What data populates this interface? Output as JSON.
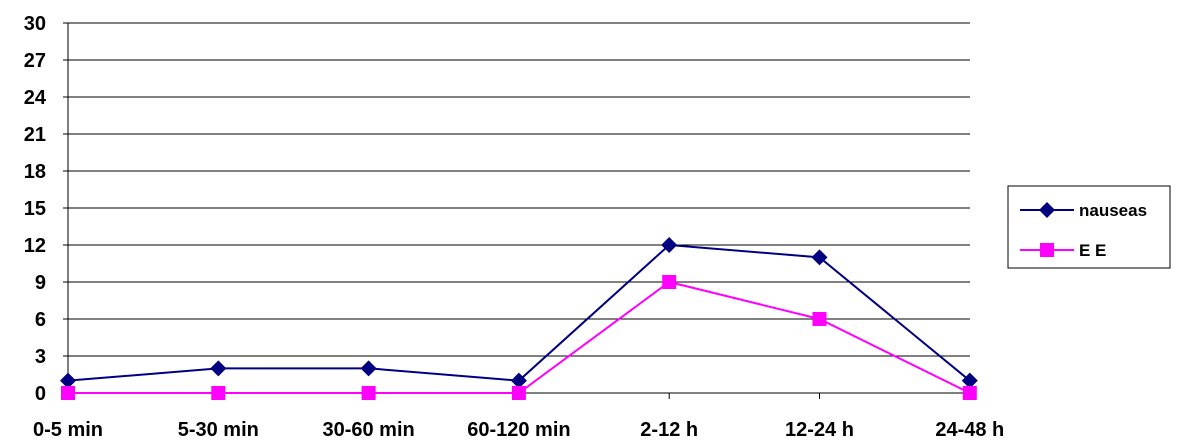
{
  "chart_data": {
    "type": "line",
    "title": "",
    "xlabel": "",
    "ylabel": "",
    "categories": [
      "0-5 min",
      "5-30 min",
      "30-60 min",
      "60-120 min",
      "2-12 h",
      "12-24 h",
      "24-48 h"
    ],
    "yticks": [
      "0",
      "3",
      "6",
      "9",
      "12",
      "15",
      "18",
      "21",
      "24",
      "27",
      "30"
    ],
    "ylim": [
      0,
      30
    ],
    "grid": "horizontal",
    "legend_position": "right",
    "series": [
      {
        "name": "nauseas",
        "values": [
          1,
          2,
          2,
          1,
          12,
          11,
          1
        ],
        "color": "#000080",
        "marker": "diamond"
      },
      {
        "name": "E E",
        "values": [
          0,
          0,
          0,
          0,
          9,
          6,
          0
        ],
        "color": "#ff00ff",
        "marker": "square"
      }
    ]
  }
}
